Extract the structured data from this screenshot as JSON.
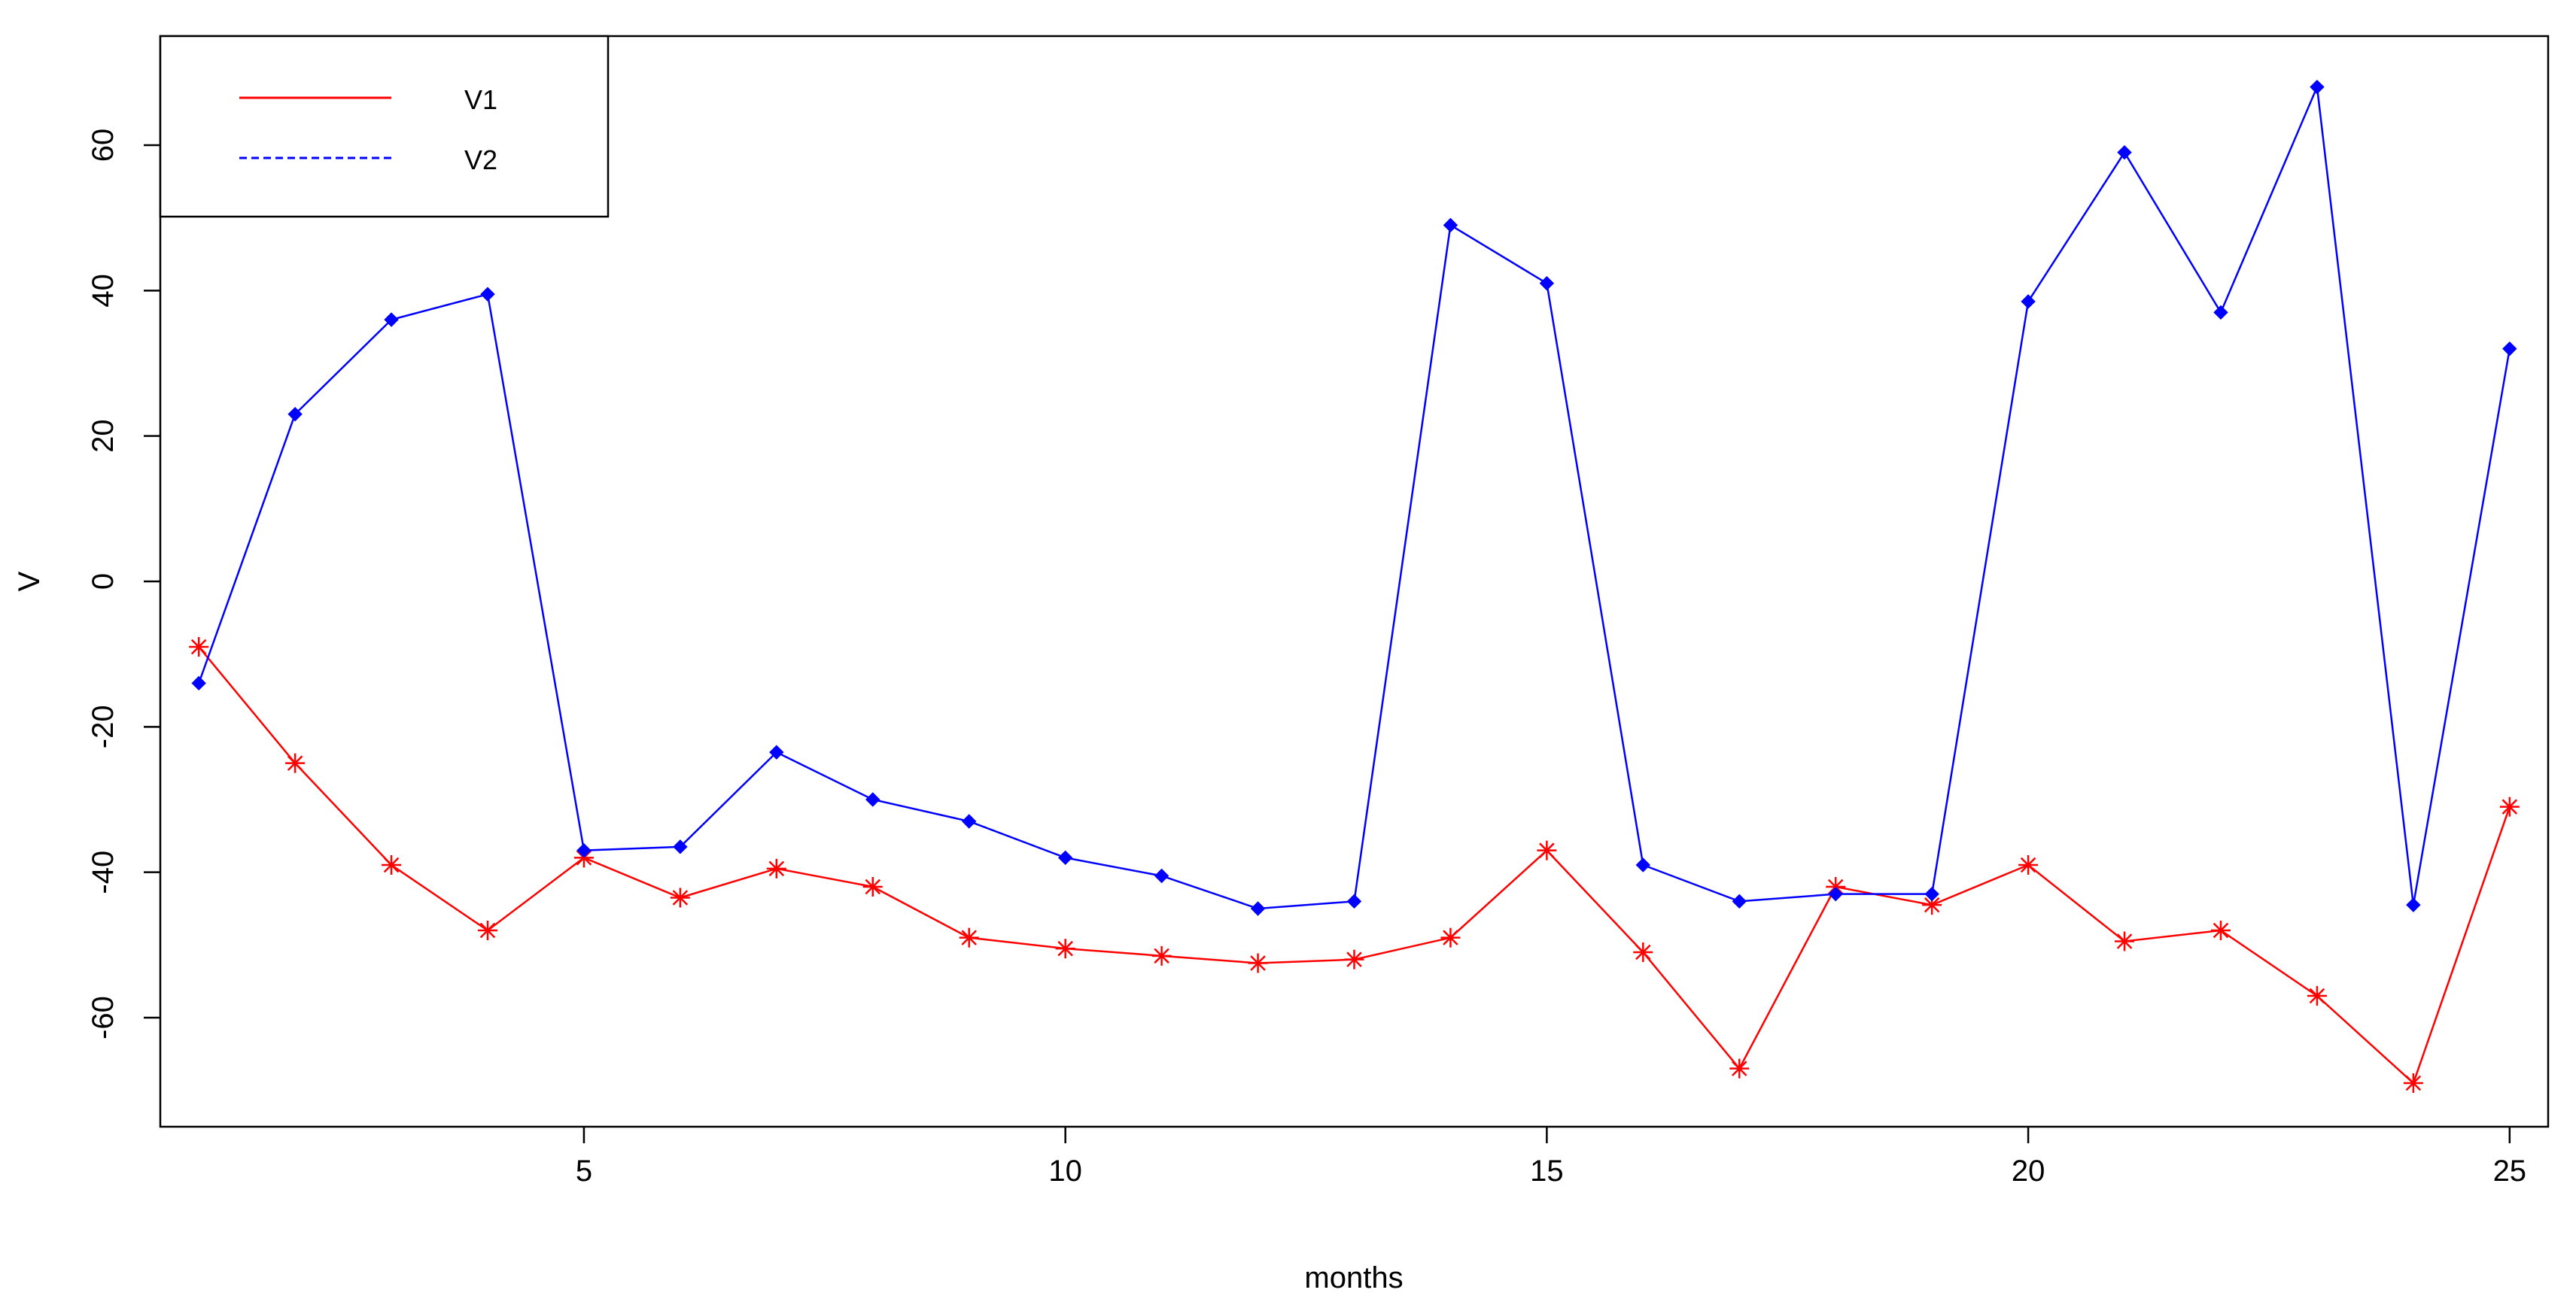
{
  "chart_data": {
    "type": "line",
    "title": "",
    "xlabel": "months",
    "ylabel": "V",
    "xlim": [
      0.6,
      25.4
    ],
    "ylim": [
      -75,
      75
    ],
    "x_ticks": [
      5,
      10,
      15,
      20,
      25
    ],
    "y_ticks": [
      -60,
      -40,
      -20,
      0,
      20,
      40,
      60
    ],
    "grid": false,
    "legend_position": "top-left",
    "x": [
      1,
      2,
      3,
      4,
      5,
      6,
      7,
      8,
      9,
      10,
      11,
      12,
      13,
      14,
      15,
      16,
      17,
      18,
      19,
      20,
      21,
      22,
      23,
      24,
      25
    ],
    "series": [
      {
        "name": "V1",
        "color": "#ff0000",
        "line_style": "solid",
        "marker": "asterisk",
        "values": [
          -9,
          -25,
          -39,
          -48,
          -38,
          -43.5,
          -39.5,
          -42,
          -49,
          -50.5,
          -51.5,
          -52.5,
          -52,
          -49,
          -37,
          -51,
          -67,
          -42,
          -44.5,
          -39,
          -49.5,
          -48,
          -57,
          -69,
          -31
        ]
      },
      {
        "name": "V2",
        "color": "#0000ff",
        "line_style": "dashed",
        "marker": "diamond",
        "values": [
          -14,
          23,
          36,
          39.5,
          -37,
          -36.5,
          -23.5,
          -30,
          -33,
          -38,
          -40.5,
          -45,
          -44,
          49,
          41,
          -39,
          -44,
          -43,
          -43,
          38.5,
          59,
          37,
          68,
          -44.5,
          32
        ]
      }
    ]
  }
}
